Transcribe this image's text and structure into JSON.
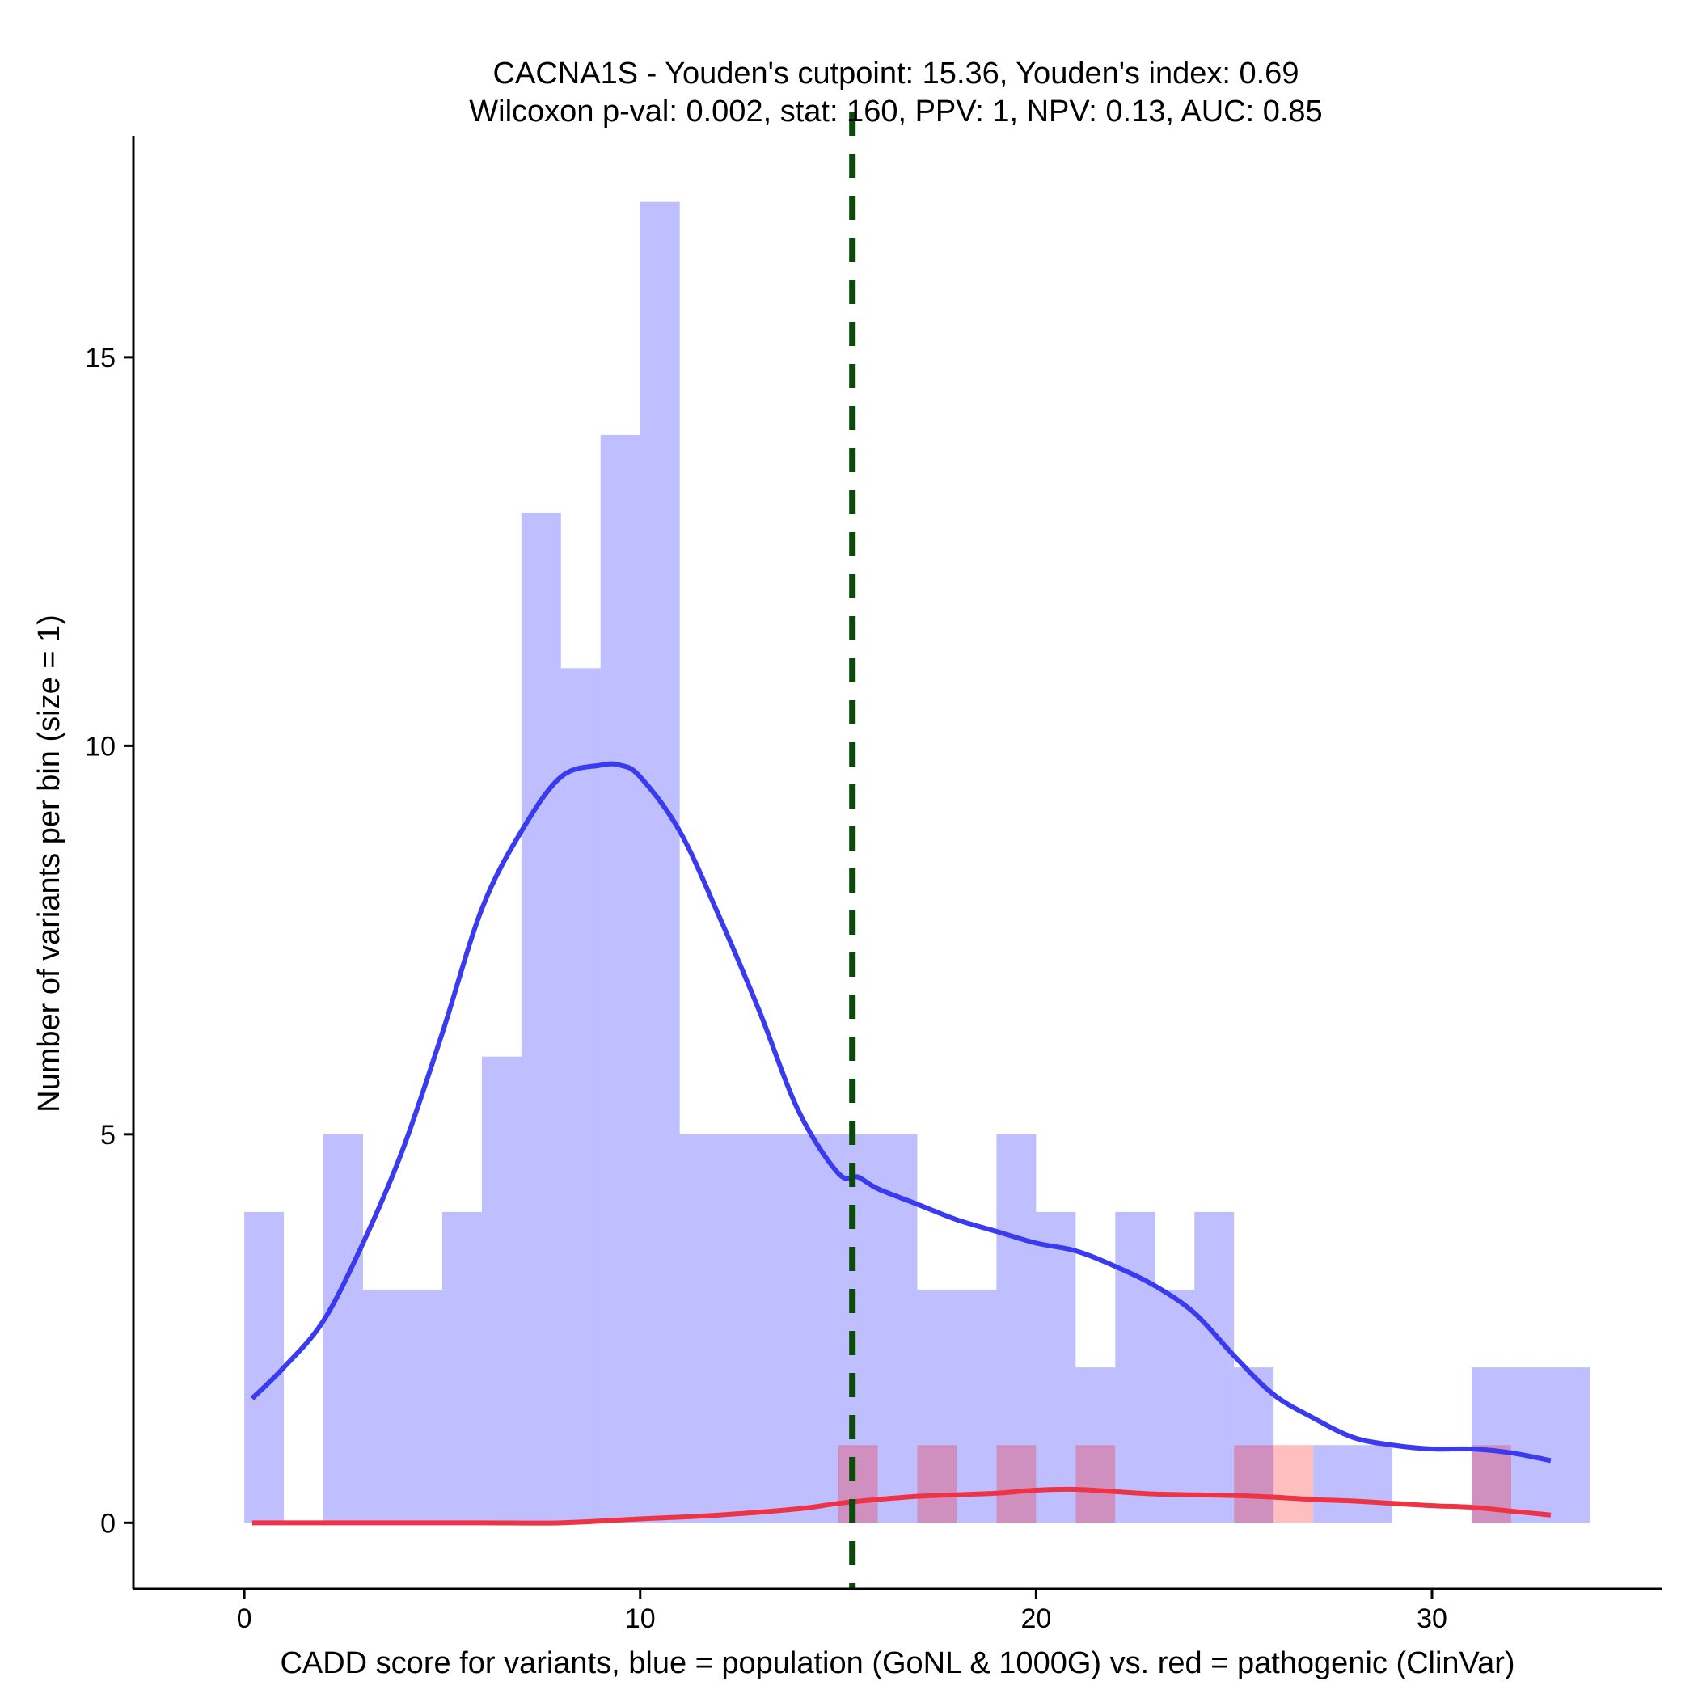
{
  "chart_data": {
    "type": "bar",
    "title": "CACNA1S - Youden's cutpoint: 15.36, Youden's index: 0.69",
    "subtitle": "Wilcoxon p-val: 0.002, stat: 160, PPV: 1, NPV: 0.13, AUC: 0.85",
    "xlabel": "CADD score for variants, blue = population (GoNL & 1000G) vs. red = pathogenic (ClinVar)",
    "ylabel": "Number of variants per bin (size = 1)",
    "xlim": [
      -2.8,
      35.8
    ],
    "ylim": [
      -0.85,
      17.85
    ],
    "x_ticks": [
      0,
      10,
      20,
      30
    ],
    "y_ticks": [
      0,
      5,
      10,
      15
    ],
    "bin_width": 1,
    "cutpoint": 15.36,
    "series": [
      {
        "name": "population (GoNL & 1000G)",
        "color": "#0000ff",
        "opacity": 0.25,
        "bins": [
          {
            "x": 0,
            "count": 4
          },
          {
            "x": 1,
            "count": 0
          },
          {
            "x": 2,
            "count": 5
          },
          {
            "x": 3,
            "count": 3
          },
          {
            "x": 4,
            "count": 3
          },
          {
            "x": 5,
            "count": 4
          },
          {
            "x": 6,
            "count": 6
          },
          {
            "x": 7,
            "count": 13
          },
          {
            "x": 8,
            "count": 11
          },
          {
            "x": 9,
            "count": 14
          },
          {
            "x": 10,
            "count": 17
          },
          {
            "x": 11,
            "count": 5
          },
          {
            "x": 12,
            "count": 5
          },
          {
            "x": 13,
            "count": 5
          },
          {
            "x": 14,
            "count": 5
          },
          {
            "x": 15,
            "count": 5
          },
          {
            "x": 16,
            "count": 5
          },
          {
            "x": 17,
            "count": 3
          },
          {
            "x": 18,
            "count": 3
          },
          {
            "x": 19,
            "count": 5
          },
          {
            "x": 20,
            "count": 4
          },
          {
            "x": 21,
            "count": 2
          },
          {
            "x": 22,
            "count": 4
          },
          {
            "x": 23,
            "count": 3
          },
          {
            "x": 24,
            "count": 4
          },
          {
            "x": 25,
            "count": 2
          },
          {
            "x": 26,
            "count": 0
          },
          {
            "x": 27,
            "count": 1
          },
          {
            "x": 28,
            "count": 1
          },
          {
            "x": 29,
            "count": 0
          },
          {
            "x": 30,
            "count": 0
          },
          {
            "x": 31,
            "count": 2
          },
          {
            "x": 32,
            "count": 2
          },
          {
            "x": 33,
            "count": 2
          }
        ],
        "density": [
          [
            0.2,
            1.6
          ],
          [
            1.0,
            2.0
          ],
          [
            2.0,
            2.6
          ],
          [
            3.0,
            3.6
          ],
          [
            4.0,
            4.8
          ],
          [
            5.0,
            6.3
          ],
          [
            6.0,
            7.9
          ],
          [
            7.0,
            8.9
          ],
          [
            8.0,
            9.6
          ],
          [
            9.0,
            9.75
          ],
          [
            9.5,
            9.75
          ],
          [
            10.0,
            9.6
          ],
          [
            11.0,
            8.9
          ],
          [
            12.0,
            7.8
          ],
          [
            13.0,
            6.6
          ],
          [
            14.0,
            5.3
          ],
          [
            15.0,
            4.5
          ],
          [
            15.5,
            4.45
          ],
          [
            16.0,
            4.3
          ],
          [
            17.0,
            4.1
          ],
          [
            18.0,
            3.9
          ],
          [
            19.0,
            3.75
          ],
          [
            20.0,
            3.6
          ],
          [
            21.0,
            3.5
          ],
          [
            22.0,
            3.3
          ],
          [
            23.0,
            3.05
          ],
          [
            24.0,
            2.7
          ],
          [
            25.0,
            2.15
          ],
          [
            26.0,
            1.65
          ],
          [
            27.0,
            1.35
          ],
          [
            28.0,
            1.1
          ],
          [
            29.0,
            1.0
          ],
          [
            30.0,
            0.95
          ],
          [
            31.0,
            0.95
          ],
          [
            32.0,
            0.9
          ],
          [
            33.0,
            0.8
          ]
        ]
      },
      {
        "name": "pathogenic (ClinVar)",
        "color": "#ff0000",
        "opacity": 0.25,
        "bins": [
          {
            "x": 15,
            "count": 1
          },
          {
            "x": 17,
            "count": 1
          },
          {
            "x": 19,
            "count": 1
          },
          {
            "x": 21,
            "count": 1
          },
          {
            "x": 25,
            "count": 1
          },
          {
            "x": 26,
            "count": 1
          },
          {
            "x": 31,
            "count": 1
          }
        ],
        "density": [
          [
            0.2,
            0.0
          ],
          [
            2.0,
            0.0
          ],
          [
            4.0,
            0.0
          ],
          [
            6.0,
            0.0
          ],
          [
            8.0,
            0.0
          ],
          [
            10.0,
            0.05
          ],
          [
            12.0,
            0.1
          ],
          [
            14.0,
            0.18
          ],
          [
            15.0,
            0.25
          ],
          [
            16.0,
            0.3
          ],
          [
            17.0,
            0.34
          ],
          [
            18.0,
            0.36
          ],
          [
            19.0,
            0.38
          ],
          [
            20.0,
            0.42
          ],
          [
            21.0,
            0.43
          ],
          [
            22.0,
            0.4
          ],
          [
            23.0,
            0.37
          ],
          [
            24.0,
            0.36
          ],
          [
            25.0,
            0.35
          ],
          [
            26.0,
            0.33
          ],
          [
            27.0,
            0.3
          ],
          [
            28.0,
            0.28
          ],
          [
            29.0,
            0.25
          ],
          [
            30.0,
            0.22
          ],
          [
            31.0,
            0.2
          ],
          [
            32.0,
            0.15
          ],
          [
            33.0,
            0.1
          ]
        ]
      }
    ],
    "cutpoint_color": "#0b4a0b",
    "pop_line_color": "#3a3aee",
    "path_line_color": "#ee3344"
  }
}
